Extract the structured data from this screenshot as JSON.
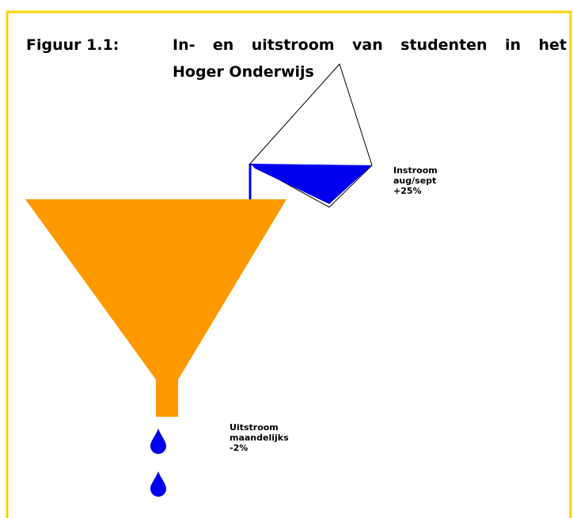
{
  "figure": {
    "number": "Figuur 1.1:",
    "title_lines": [
      "In- en uitstroom van studenten in het",
      "Hoger Onderwijs"
    ]
  },
  "labels": {
    "instroom": [
      "Instroom",
      "aug/sept",
      "+25%"
    ],
    "uitstroom": [
      "Uitstroom",
      "maandelijks",
      "-2%"
    ]
  }
}
